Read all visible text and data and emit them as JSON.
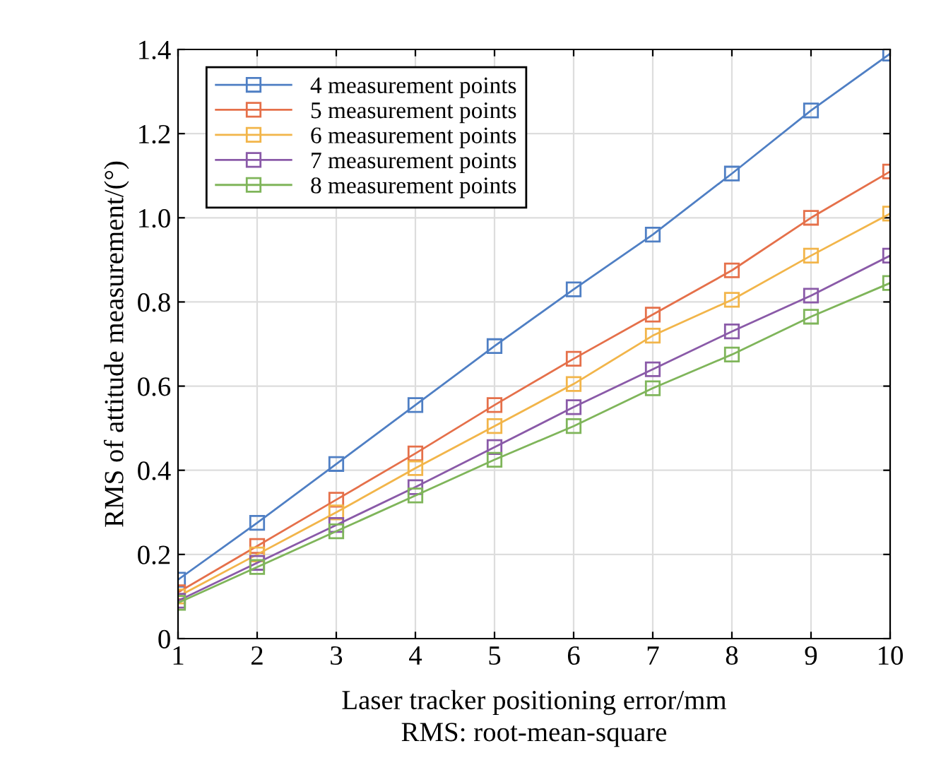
{
  "chart_data": {
    "type": "line",
    "xlabel": "Laser tracker positioning error/mm",
    "ylabel": "RMS of attitude measurement/(°)",
    "annotations": [
      "RMS: root-mean-square"
    ],
    "x": [
      1,
      2,
      3,
      4,
      5,
      6,
      7,
      8,
      9,
      10
    ],
    "series": [
      {
        "name": "4 measurement points",
        "color": "#4f7fc4",
        "values": [
          0.14,
          0.275,
          0.415,
          0.555,
          0.695,
          0.83,
          0.96,
          1.105,
          1.255,
          1.39
        ]
      },
      {
        "name": "5 measurement points",
        "color": "#e5704a",
        "values": [
          0.11,
          0.22,
          0.33,
          0.44,
          0.555,
          0.665,
          0.77,
          0.875,
          1.0,
          1.11
        ]
      },
      {
        "name": "6 measurement points",
        "color": "#f2b54a",
        "values": [
          0.1,
          0.2,
          0.3,
          0.405,
          0.505,
          0.605,
          0.72,
          0.805,
          0.91,
          1.01
        ]
      },
      {
        "name": "7 measurement points",
        "color": "#8a5aa8",
        "values": [
          0.09,
          0.18,
          0.27,
          0.36,
          0.455,
          0.55,
          0.64,
          0.73,
          0.815,
          0.91
        ]
      },
      {
        "name": "8 measurement points",
        "color": "#7fb55a",
        "values": [
          0.085,
          0.17,
          0.255,
          0.34,
          0.425,
          0.505,
          0.595,
          0.675,
          0.765,
          0.845
        ]
      }
    ],
    "xlim": [
      1,
      10
    ],
    "xticks": [
      1,
      2,
      3,
      4,
      5,
      6,
      7,
      8,
      9,
      10
    ],
    "ylim": [
      0,
      1.4
    ],
    "yticks": [
      0,
      0.2,
      0.4,
      0.6,
      0.8,
      {
        "value": 1,
        "label": "1.0"
      },
      1.2,
      1.4
    ],
    "grid": true,
    "legend": "top left",
    "marker": "square",
    "line_style": "solid"
  }
}
